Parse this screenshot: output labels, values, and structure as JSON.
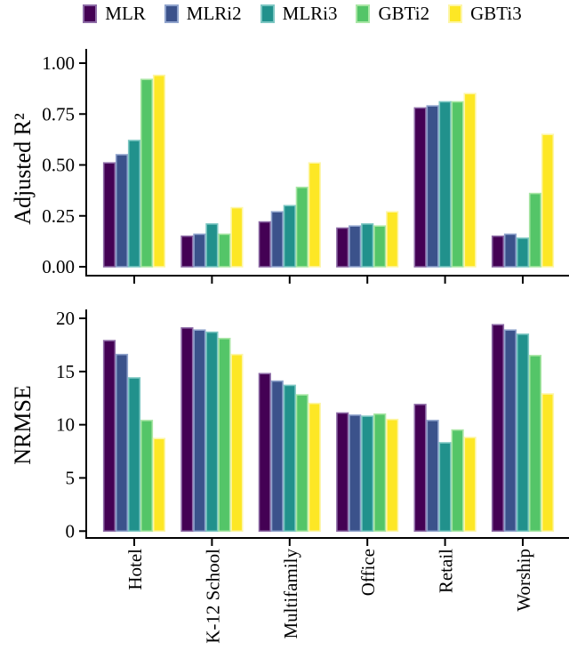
{
  "legend": {
    "items": [
      {
        "label": "MLR",
        "color": "#440154",
        "border": "#8d6ba6"
      },
      {
        "label": "MLRi2",
        "color": "#3b528b",
        "border": "#8fa3cc"
      },
      {
        "label": "MLRi3",
        "color": "#21918c",
        "border": "#7cc6c2"
      },
      {
        "label": "GBTi2",
        "color": "#54c568",
        "border": "#a9e6a5"
      },
      {
        "label": "GBTi3",
        "color": "#fde725",
        "border": "#fdf6a8"
      }
    ]
  },
  "chart_data": [
    {
      "type": "bar",
      "panel": "top",
      "ylabel": "Adjusted R²",
      "categories": [
        "Hotel",
        "K-12 School",
        "Multifamily",
        "Office",
        "Retail",
        "Worship"
      ],
      "series": [
        {
          "name": "MLR",
          "values": [
            0.51,
            0.15,
            0.22,
            0.19,
            0.78,
            0.15
          ]
        },
        {
          "name": "MLRi2",
          "values": [
            0.55,
            0.16,
            0.27,
            0.2,
            0.79,
            0.16
          ]
        },
        {
          "name": "MLRi3",
          "values": [
            0.62,
            0.21,
            0.3,
            0.21,
            0.81,
            0.14
          ]
        },
        {
          "name": "GBTi2",
          "values": [
            0.92,
            0.16,
            0.39,
            0.2,
            0.81,
            0.36
          ]
        },
        {
          "name": "GBTi3",
          "values": [
            0.94,
            0.29,
            0.51,
            0.27,
            0.85,
            0.65
          ]
        }
      ],
      "ylim": [
        0,
        1.0
      ],
      "yticks": [
        0,
        0.25,
        0.5,
        0.75,
        1.0
      ],
      "ytick_labels": [
        "0.00",
        "0.25",
        "0.50",
        "0.75",
        "1.00"
      ],
      "show_xlabels": false,
      "grid": false,
      "legend_position": "top"
    },
    {
      "type": "bar",
      "panel": "bottom",
      "ylabel": "NRMSE",
      "categories": [
        "Hotel",
        "K-12 School",
        "Multifamily",
        "Office",
        "Retail",
        "Worship"
      ],
      "series": [
        {
          "name": "MLR",
          "values": [
            17.9,
            19.1,
            14.8,
            11.1,
            11.9,
            19.4
          ]
        },
        {
          "name": "MLRi2",
          "values": [
            16.6,
            18.9,
            14.1,
            10.9,
            10.4,
            18.9
          ]
        },
        {
          "name": "MLRi3",
          "values": [
            14.4,
            18.7,
            13.7,
            10.8,
            8.3,
            18.5
          ]
        },
        {
          "name": "GBTi2",
          "values": [
            10.4,
            18.1,
            12.8,
            11.0,
            9.5,
            16.5
          ]
        },
        {
          "name": "GBTi3",
          "values": [
            8.7,
            16.6,
            12.0,
            10.5,
            8.8,
            12.9
          ]
        }
      ],
      "ylim": [
        0,
        20
      ],
      "yticks": [
        0,
        5,
        10,
        15,
        20
      ],
      "ytick_labels": [
        "0",
        "5",
        "10",
        "15",
        "20"
      ],
      "show_xlabels": true,
      "grid": false
    }
  ]
}
